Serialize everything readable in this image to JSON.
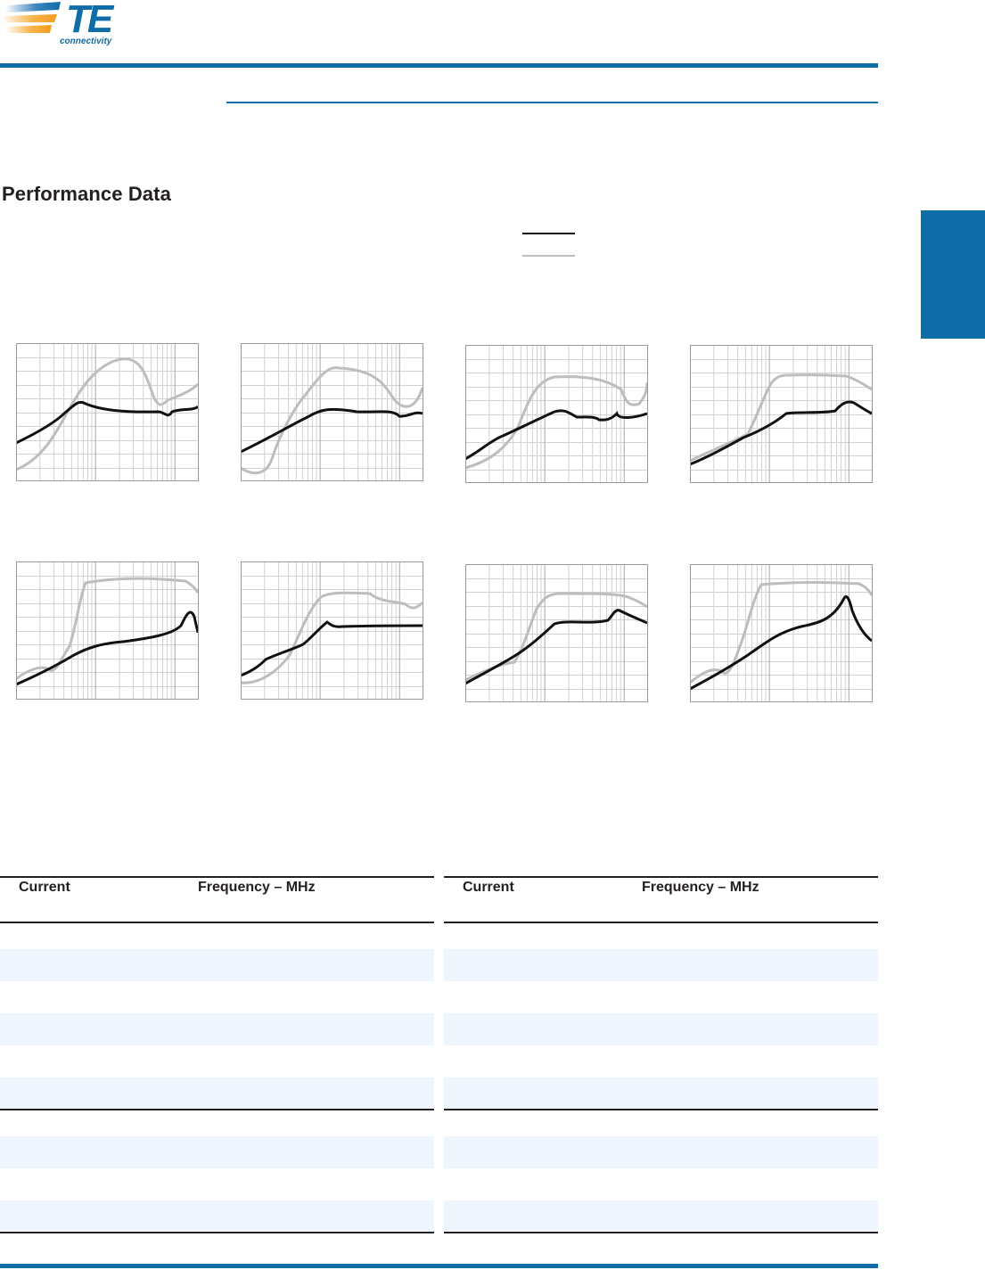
{
  "header": {
    "brand": "TE",
    "tagline": "connectivity",
    "brand_colors": {
      "blue": "#0e6ca7",
      "orange": "#f39c1f"
    }
  },
  "section": {
    "title": "Performance Data"
  },
  "legend": {
    "line_colors": [
      "#111111",
      "#bdbdbd"
    ]
  },
  "graphs": [
    {
      "id": 1,
      "black_line": "rises to a peak near the left-middle, then flattens with a small dip near the right",
      "gray_line": "rises steeply to a broad hump then drops and recovers"
    },
    {
      "id": 2
    },
    {
      "id": 3
    },
    {
      "id": 4
    },
    {
      "id": 5
    },
    {
      "id": 6
    },
    {
      "id": 7
    },
    {
      "id": 8
    }
  ],
  "tables": [
    {
      "headers": [
        "Current",
        "Frequency – MHz"
      ]
    },
    {
      "headers": [
        "Current",
        "Frequency – MHz"
      ]
    }
  ]
}
